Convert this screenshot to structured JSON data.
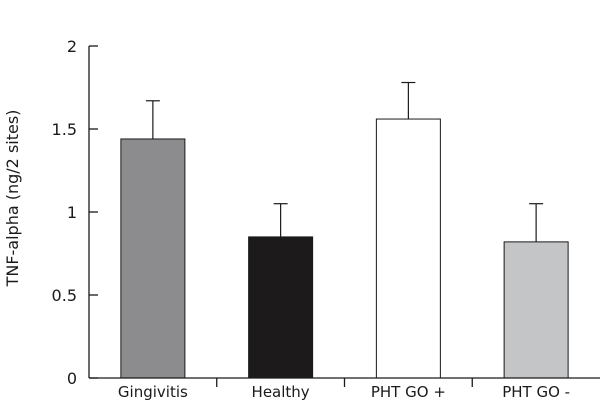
{
  "chart_data": {
    "type": "bar",
    "title": "",
    "xlabel": "",
    "ylabel": "TNF-alpha (ng/2 sites)",
    "ylim": [
      0,
      2
    ],
    "yticks": [
      {
        "value": 0,
        "label": "0"
      },
      {
        "value": 0.5,
        "label": "0.5"
      },
      {
        "value": 1,
        "label": "1"
      },
      {
        "value": 1.5,
        "label": "1.5"
      },
      {
        "value": 2,
        "label": "2"
      }
    ],
    "grid": false,
    "legend": "none",
    "categories": [
      "Gingivitis",
      "Healthy",
      "PHT GO +",
      "PHT GO -"
    ],
    "values": [
      1.44,
      0.85,
      1.56,
      0.82
    ],
    "error_upper": [
      0.23,
      0.2,
      0.22,
      0.23
    ],
    "colors": [
      "#8c8c8f",
      "#1c1a1b",
      "#ffffff",
      "#c4c5c7"
    ]
  }
}
